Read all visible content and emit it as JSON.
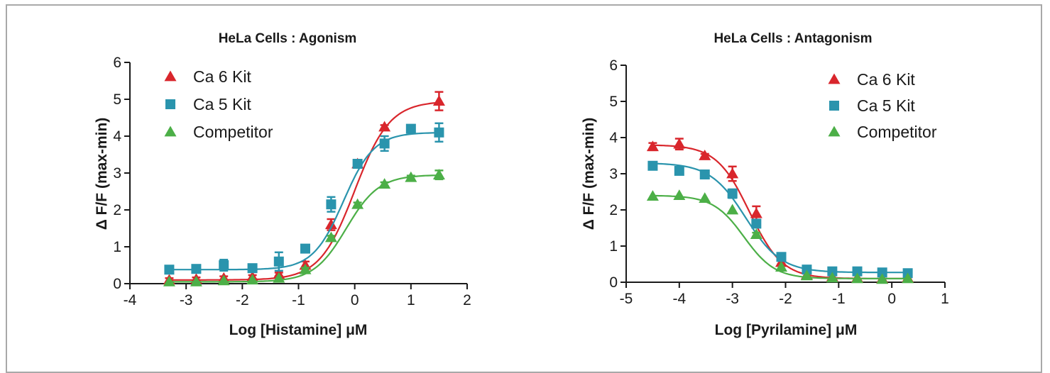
{
  "chart_data": [
    {
      "type": "scatter",
      "title": "HeLa Cells : Agonism",
      "xlabel": "Log [Histamine] μM",
      "ylabel": "Δ F/F (max-min)",
      "xlim": [
        -4,
        2
      ],
      "ylim": [
        0,
        6
      ],
      "xticks": [
        "-4",
        "-3",
        "-2",
        "-1",
        "0",
        "1",
        "2"
      ],
      "yticks": [
        "0",
        "1",
        "2",
        "3",
        "4",
        "5",
        "6"
      ],
      "legend_position": "top-left",
      "series": [
        {
          "name": "Ca 6 Kit",
          "color": "#d9262c",
          "marker": "triangle",
          "x": [
            -3.3,
            -2.82,
            -2.33,
            -1.82,
            -1.35,
            -0.88,
            -0.42,
            0.05,
            0.53,
            1.5
          ],
          "y": [
            0.1,
            0.12,
            0.15,
            0.18,
            0.25,
            0.5,
            1.6,
            3.25,
            4.25,
            4.95
          ],
          "err": [
            0.05,
            0.05,
            0.05,
            0.05,
            0.05,
            0.1,
            0.15,
            0.1,
            0.05,
            0.25
          ],
          "fit": {
            "bottom": 0.1,
            "top": 4.95,
            "logEC50": 0.0,
            "hill": 1.4
          }
        },
        {
          "name": "Ca 5 Kit",
          "color": "#2a94ad",
          "marker": "square",
          "x": [
            -3.3,
            -2.82,
            -2.33,
            -1.82,
            -1.35,
            -0.88,
            -0.42,
            0.05,
            0.53,
            1.0,
            1.5
          ],
          "y": [
            0.38,
            0.4,
            0.5,
            0.42,
            0.6,
            0.95,
            2.15,
            3.25,
            3.8,
            4.2,
            4.1
          ],
          "err": [
            0.05,
            0.05,
            0.15,
            0.05,
            0.25,
            0.1,
            0.2,
            0.1,
            0.2,
            0.05,
            0.25
          ],
          "fit": {
            "bottom": 0.38,
            "top": 4.1,
            "logEC50": -0.2,
            "hill": 1.6
          }
        },
        {
          "name": "Competitor",
          "color": "#4caf47",
          "marker": "triangle",
          "x": [
            -3.3,
            -2.82,
            -2.33,
            -1.82,
            -1.35,
            -0.88,
            -0.42,
            0.05,
            0.53,
            1.0,
            1.5
          ],
          "y": [
            0.05,
            0.05,
            0.08,
            0.1,
            0.15,
            0.38,
            1.25,
            2.15,
            2.7,
            2.88,
            2.95
          ],
          "err": [
            0.03,
            0.03,
            0.03,
            0.03,
            0.03,
            0.05,
            0.05,
            0.05,
            0.05,
            0.05,
            0.12
          ],
          "fit": {
            "bottom": 0.05,
            "top": 2.95,
            "logEC50": -0.15,
            "hill": 1.5
          }
        }
      ]
    },
    {
      "type": "scatter",
      "title": "HeLa Cells : Antagonism",
      "xlabel": "Log [Pyrilamine] μM",
      "ylabel": "Δ F/F (max-min)",
      "xlim": [
        -5,
        1
      ],
      "ylim": [
        0,
        6
      ],
      "xticks": [
        "-5",
        "-4",
        "-3",
        "-2",
        "-1",
        "0",
        "1"
      ],
      "yticks": [
        "0",
        "1",
        "2",
        "3",
        "4",
        "5",
        "6"
      ],
      "legend_position": "top-right",
      "series": [
        {
          "name": "Ca 6 Kit",
          "color": "#d9262c",
          "marker": "triangle",
          "x": [
            -4.5,
            -4.0,
            -3.52,
            -3.0,
            -2.55,
            -2.08,
            -1.6,
            -1.12,
            -0.65,
            -0.18,
            0.3
          ],
          "y": [
            3.75,
            3.82,
            3.5,
            3.0,
            1.9,
            0.55,
            0.2,
            0.15,
            0.12,
            0.1,
            0.12
          ],
          "err": [
            0.1,
            0.15,
            0.05,
            0.2,
            0.2,
            0.05,
            0.03,
            0.03,
            0.03,
            0.03,
            0.03
          ],
          "fit": {
            "bottom": 0.1,
            "top": 3.8,
            "logEC50": -2.68,
            "hill": -1.4
          }
        },
        {
          "name": "Ca 5 Kit",
          "color": "#2a94ad",
          "marker": "square",
          "x": [
            -4.5,
            -4.0,
            -3.52,
            -3.0,
            -2.55,
            -2.08,
            -1.6,
            -1.12,
            -0.65,
            -0.18,
            0.3
          ],
          "y": [
            3.22,
            3.08,
            2.98,
            2.45,
            1.62,
            0.7,
            0.35,
            0.3,
            0.3,
            0.27,
            0.25
          ],
          "err": [
            0.05,
            0.1,
            0.05,
            0.12,
            0.05,
            0.05,
            0.03,
            0.03,
            0.03,
            0.03,
            0.03
          ],
          "fit": {
            "bottom": 0.27,
            "top": 3.3,
            "logEC50": -2.75,
            "hill": -1.3
          }
        },
        {
          "name": "Competitor",
          "color": "#4caf47",
          "marker": "triangle",
          "x": [
            -4.5,
            -4.0,
            -3.52,
            -3.0,
            -2.55,
            -2.08,
            -1.6,
            -1.12,
            -0.65,
            -0.18,
            0.3
          ],
          "y": [
            2.38,
            2.4,
            2.32,
            2.0,
            1.32,
            0.42,
            0.18,
            0.12,
            0.1,
            0.08,
            0.1
          ],
          "err": [
            0.03,
            0.03,
            0.03,
            0.03,
            0.05,
            0.03,
            0.03,
            0.03,
            0.03,
            0.03,
            0.03
          ],
          "fit": {
            "bottom": 0.1,
            "top": 2.4,
            "logEC50": -2.78,
            "hill": -1.5
          }
        }
      ]
    }
  ]
}
